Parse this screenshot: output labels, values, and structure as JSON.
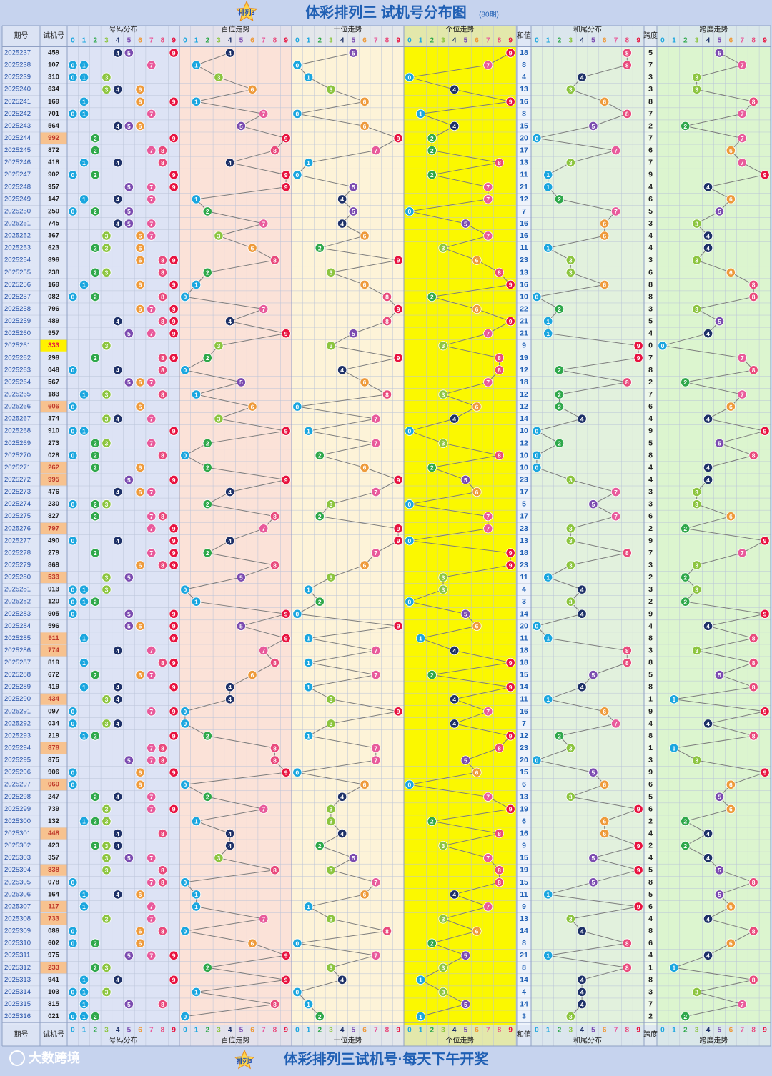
{
  "chart_data": {
    "type": "table",
    "title": "体彩排列三 试机号分布图",
    "subtitle": "(80期)",
    "footer_title": "体彩排列三试机号·每天下午开奖",
    "watermark": "大数跨境",
    "logo_text": "排列3",
    "headers": {
      "issue": "期号",
      "draw": "试机号",
      "dist": "号码分布",
      "hundreds": "百位走势",
      "tens": "十位走势",
      "units": "个位走势",
      "sum": "和值",
      "tail": "和尾分布",
      "span": "跨度",
      "span_trend": "跨度走势"
    },
    "digit_labels": [
      "0",
      "1",
      "2",
      "3",
      "4",
      "5",
      "6",
      "7",
      "8",
      "9"
    ],
    "colors": {
      "ball": [
        "#1aa6df",
        "#1aa6df",
        "#2ea84a",
        "#8cc53f",
        "#1e3168",
        "#7b4bb0",
        "#ee9a3a",
        "#e85a9b",
        "#e94a7c",
        "#e8123f"
      ],
      "dist_bg": "#dde3f5",
      "hundreds_bg": "#fbe2d8",
      "tens_bg": "#fdf3d8",
      "units_bg": "#fbf800",
      "tail_bg": "#e2f1dd",
      "span_bg": "#dcf5cf",
      "header_bg": "#c6d3ee",
      "title_color": "#1f5fb4",
      "sum_color": "#1f5fb4",
      "issue_color": "#2350a8",
      "pair_highlight": "#f7c28f",
      "triple_highlight": "#fff200"
    },
    "rows": [
      [
        "2025237",
        "459"
      ],
      [
        "2025238",
        "107"
      ],
      [
        "2025239",
        "310"
      ],
      [
        "2025240",
        "634"
      ],
      [
        "2025241",
        "169"
      ],
      [
        "2025242",
        "701"
      ],
      [
        "2025243",
        "564"
      ],
      [
        "2025244",
        "992"
      ],
      [
        "2025245",
        "872"
      ],
      [
        "2025246",
        "418"
      ],
      [
        "2025247",
        "902"
      ],
      [
        "2025248",
        "957"
      ],
      [
        "2025249",
        "147"
      ],
      [
        "2025250",
        "250"
      ],
      [
        "2025251",
        "745"
      ],
      [
        "2025252",
        "367"
      ],
      [
        "2025253",
        "623"
      ],
      [
        "2025254",
        "896"
      ],
      [
        "2025255",
        "238"
      ],
      [
        "2025256",
        "169"
      ],
      [
        "2025257",
        "082"
      ],
      [
        "2025258",
        "796"
      ],
      [
        "2025259",
        "489"
      ],
      [
        "2025260",
        "957"
      ],
      [
        "2025261",
        "333"
      ],
      [
        "2025262",
        "298"
      ],
      [
        "2025263",
        "048"
      ],
      [
        "2025264",
        "567"
      ],
      [
        "2025265",
        "183"
      ],
      [
        "2025266",
        "606"
      ],
      [
        "2025267",
        "374"
      ],
      [
        "2025268",
        "910"
      ],
      [
        "2025269",
        "273"
      ],
      [
        "2025270",
        "028"
      ],
      [
        "2025271",
        "262"
      ],
      [
        "2025272",
        "995"
      ],
      [
        "2025273",
        "476"
      ],
      [
        "2025274",
        "230"
      ],
      [
        "2025275",
        "827"
      ],
      [
        "2025276",
        "797"
      ],
      [
        "2025277",
        "490"
      ],
      [
        "2025278",
        "279"
      ],
      [
        "2025279",
        "869"
      ],
      [
        "2025280",
        "533"
      ],
      [
        "2025281",
        "013"
      ],
      [
        "2025282",
        "120"
      ],
      [
        "2025283",
        "905"
      ],
      [
        "2025284",
        "596"
      ],
      [
        "2025285",
        "911"
      ],
      [
        "2025286",
        "774"
      ],
      [
        "2025287",
        "819"
      ],
      [
        "2025288",
        "672"
      ],
      [
        "2025289",
        "419"
      ],
      [
        "2025290",
        "434"
      ],
      [
        "2025291",
        "097"
      ],
      [
        "2025292",
        "034"
      ],
      [
        "2025293",
        "219"
      ],
      [
        "2025294",
        "878"
      ],
      [
        "2025295",
        "875"
      ],
      [
        "2025296",
        "906"
      ],
      [
        "2025297",
        "060"
      ],
      [
        "2025298",
        "247"
      ],
      [
        "2025299",
        "739"
      ],
      [
        "2025300",
        "132"
      ],
      [
        "2025301",
        "448"
      ],
      [
        "2025302",
        "423"
      ],
      [
        "2025303",
        "357"
      ],
      [
        "2025304",
        "838"
      ],
      [
        "2025305",
        "078"
      ],
      [
        "2025306",
        "164"
      ],
      [
        "2025307",
        "117"
      ],
      [
        "2025308",
        "733"
      ],
      [
        "2025309",
        "086"
      ],
      [
        "2025310",
        "602"
      ],
      [
        "2025311",
        "975"
      ],
      [
        "2025312",
        "233"
      ],
      [
        "2025313",
        "941"
      ],
      [
        "2025314",
        "103"
      ],
      [
        "2025315",
        "815"
      ],
      [
        "2025316",
        "021"
      ]
    ]
  }
}
